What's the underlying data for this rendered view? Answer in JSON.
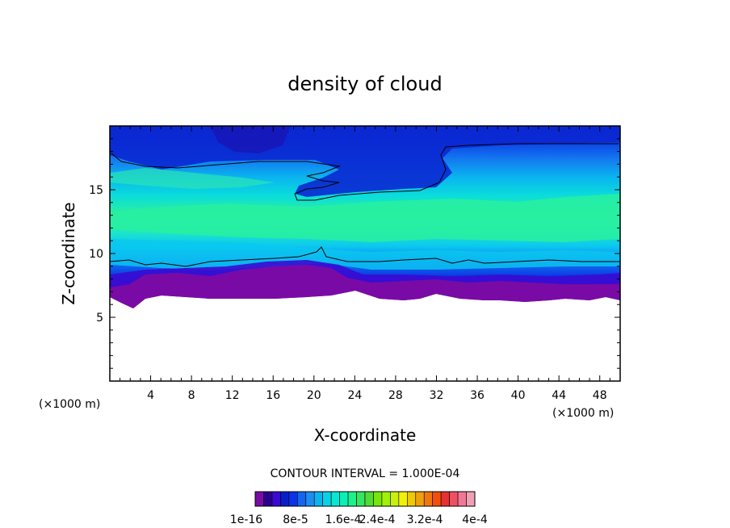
{
  "chart_data": {
    "type": "heatmap",
    "title": "density of cloud",
    "xlabel": "X-coordinate",
    "ylabel": "Z-coordinate",
    "x_unit_left": "(×1000 m)",
    "x_unit_right": "(×1000 m)",
    "xlim": [
      0,
      50
    ],
    "ylim": [
      0,
      20
    ],
    "x_ticks": [
      "4",
      "8",
      "12",
      "16",
      "20",
      "24",
      "28",
      "32",
      "36",
      "40",
      "44",
      "48"
    ],
    "x_tick_values": [
      4,
      8,
      12,
      16,
      20,
      24,
      28,
      32,
      36,
      40,
      44,
      48
    ],
    "y_ticks": [
      "5",
      "10",
      "15"
    ],
    "y_tick_values": [
      5,
      10,
      15
    ],
    "contour_interval_text": "CONTOUR INTERVAL = 1.000E-04",
    "colorbar_labels": [
      "1e-16",
      "8e-5",
      "1.6e-4",
      "2.4e-4",
      "3.2e-4",
      "4e-4"
    ],
    "colorbar_colors": [
      "#7a0aa6",
      "#2a0090",
      "#3a0ad2",
      "#0a1ec8",
      "#0a32e6",
      "#1464f0",
      "#1e8cf0",
      "#0ab4f0",
      "#0ad2e6",
      "#0ae6d2",
      "#0af0b4",
      "#1ef08c",
      "#32e664",
      "#50dc32",
      "#78e60a",
      "#a0f00a",
      "#c8f00a",
      "#f0f00a",
      "#f0c80a",
      "#f0a00a",
      "#f0780a",
      "#f0500a",
      "#e63232",
      "#f05064",
      "#f07896",
      "#f0a0b4"
    ],
    "colors": {
      "background": "#ffffff",
      "cloud_base": "#7a0aa6",
      "cloud_top": "#0a32e6",
      "cloud_core": "#28f0a0"
    }
  }
}
